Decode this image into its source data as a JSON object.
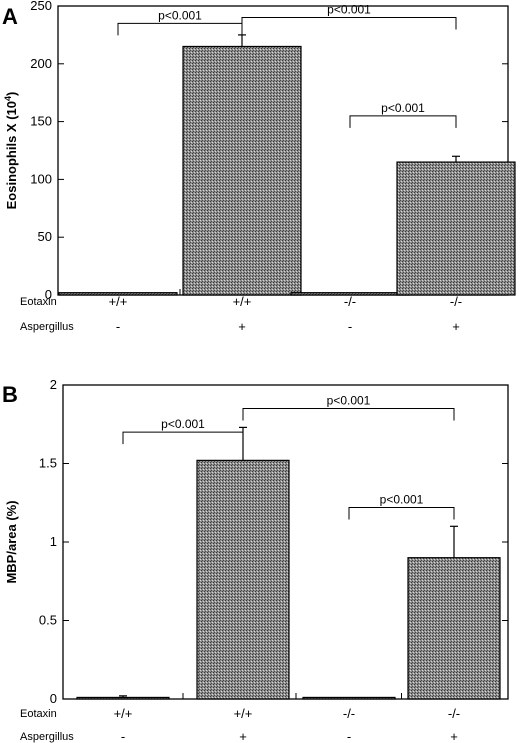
{
  "chart_data": [
    {
      "panel": "A",
      "type": "bar",
      "ylabel": "Eosinophils  X (10",
      "ylabel_sup": "4",
      "ylabel_close": ")",
      "ylim": [
        0,
        250
      ],
      "yticks": [
        "0",
        "50",
        "100",
        "150",
        "200",
        "250"
      ],
      "categories": [
        "+/+",
        "+/+",
        "-/-",
        "-/-"
      ],
      "values": [
        2,
        215,
        2,
        115
      ],
      "errors": [
        0,
        10,
        0,
        5
      ],
      "row_labels": {
        "eotaxin": "Eotaxin",
        "aspergillus": "Aspergillus"
      },
      "eotaxin": [
        "+/+",
        "+/+",
        "-/-",
        "-/-"
      ],
      "aspergillus": [
        "-",
        "+",
        "-",
        "+"
      ],
      "annotations": [
        {
          "from": 0,
          "to": 1,
          "y": 235,
          "text": "p<0.001"
        },
        {
          "from": 1,
          "to": 3,
          "y": 240,
          "text": "p<0.001"
        },
        {
          "from": 2,
          "to": 3,
          "y": 155,
          "text": "p<0.001"
        }
      ]
    },
    {
      "panel": "B",
      "type": "bar",
      "ylabel": "MBP/area (%)",
      "ylim": [
        0,
        2
      ],
      "yticks": [
        "0",
        "0.5",
        "1",
        "1.5",
        "2"
      ],
      "categories": [
        "+/+",
        "+/+",
        "-/-",
        "-/-"
      ],
      "values": [
        0.01,
        1.52,
        0.01,
        0.9
      ],
      "errors": [
        0.01,
        0.21,
        0,
        0.2
      ],
      "row_labels": {
        "eotaxin": "Eotaxin",
        "aspergillus": "Aspergillus"
      },
      "eotaxin": [
        "+/+",
        "+/+",
        "-/-",
        "-/-"
      ],
      "aspergillus": [
        "-",
        "+",
        "-",
        "+"
      ],
      "annotations": [
        {
          "from": 0,
          "to": 1,
          "y": 1.7,
          "text": "p<0.001"
        },
        {
          "from": 1,
          "to": 3,
          "y": 1.85,
          "text": "p<0.001"
        },
        {
          "from": 2,
          "to": 3,
          "y": 1.22,
          "text": "p<0.001"
        }
      ]
    }
  ]
}
